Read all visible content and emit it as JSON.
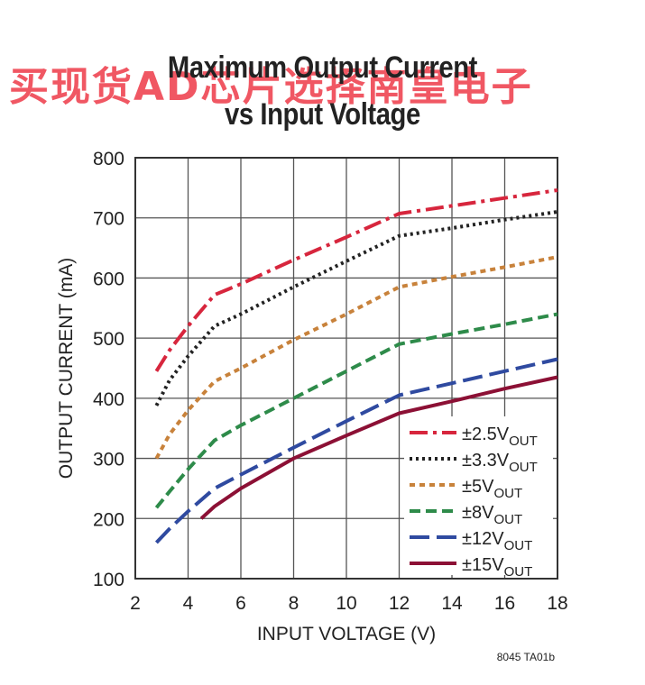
{
  "title_line1": "Maximum Output Current",
  "title_line2": "vs Input Voltage",
  "watermark": "买现货AD芯片选择南皇电子",
  "figure_id": "8045 TA01b",
  "chart_data": {
    "type": "line",
    "xlabel": "INPUT VOLTAGE (V)",
    "ylabel": "OUTPUT CURRENT (mA)",
    "xlim": [
      2,
      18
    ],
    "ylim": [
      100,
      800
    ],
    "xticks": [
      2,
      4,
      6,
      8,
      10,
      12,
      14,
      16,
      18
    ],
    "yticks": [
      100,
      200,
      300,
      400,
      500,
      600,
      700,
      800
    ],
    "grid": true,
    "legend_position": "bottom-right",
    "series": [
      {
        "name": "±2.5V",
        "sub": "OUT",
        "color": "#d7263d",
        "dash": "20 6 4 6",
        "x": [
          2.8,
          3.3,
          4,
          5,
          6,
          8,
          10,
          12,
          14,
          16,
          18
        ],
        "y": [
          445,
          480,
          520,
          572,
          590,
          630,
          668,
          707,
          720,
          733,
          746
        ]
      },
      {
        "name": "±3.3V",
        "sub": "OUT",
        "color": "#222222",
        "dash": "3 4",
        "x": [
          2.8,
          3.3,
          4,
          5,
          6,
          8,
          10,
          12,
          14,
          16,
          18
        ],
        "y": [
          388,
          430,
          470,
          520,
          540,
          585,
          628,
          670,
          683,
          697,
          710
        ]
      },
      {
        "name": "±5V",
        "sub": "OUT",
        "color": "#c8823b",
        "dash": "6 5",
        "x": [
          2.8,
          3.3,
          4,
          5,
          6,
          8,
          10,
          12,
          14,
          16,
          18
        ],
        "y": [
          300,
          340,
          380,
          428,
          450,
          497,
          540,
          585,
          602,
          618,
          635
        ]
      },
      {
        "name": "±8V",
        "sub": "OUT",
        "color": "#2e8b4a",
        "dash": "12 6",
        "x": [
          2.8,
          3.3,
          4,
          5,
          6,
          8,
          10,
          12,
          14,
          16,
          18
        ],
        "y": [
          218,
          245,
          282,
          330,
          355,
          400,
          445,
          490,
          507,
          523,
          540
        ]
      },
      {
        "name": "±12V",
        "sub": "OUT",
        "color": "#2f4aa0",
        "dash": "22 8",
        "x": [
          2.8,
          3.3,
          4,
          5,
          6,
          8,
          10,
          12,
          14,
          16,
          18
        ],
        "y": [
          160,
          183,
          212,
          250,
          273,
          318,
          362,
          405,
          425,
          445,
          465
        ]
      },
      {
        "name": "±15V",
        "sub": "OUT",
        "color": "#8c1035",
        "dash": "",
        "x": [
          4.5,
          5,
          6,
          8,
          10,
          12,
          14,
          16,
          18
        ],
        "y": [
          200,
          220,
          250,
          300,
          338,
          375,
          395,
          416,
          435
        ]
      }
    ]
  }
}
